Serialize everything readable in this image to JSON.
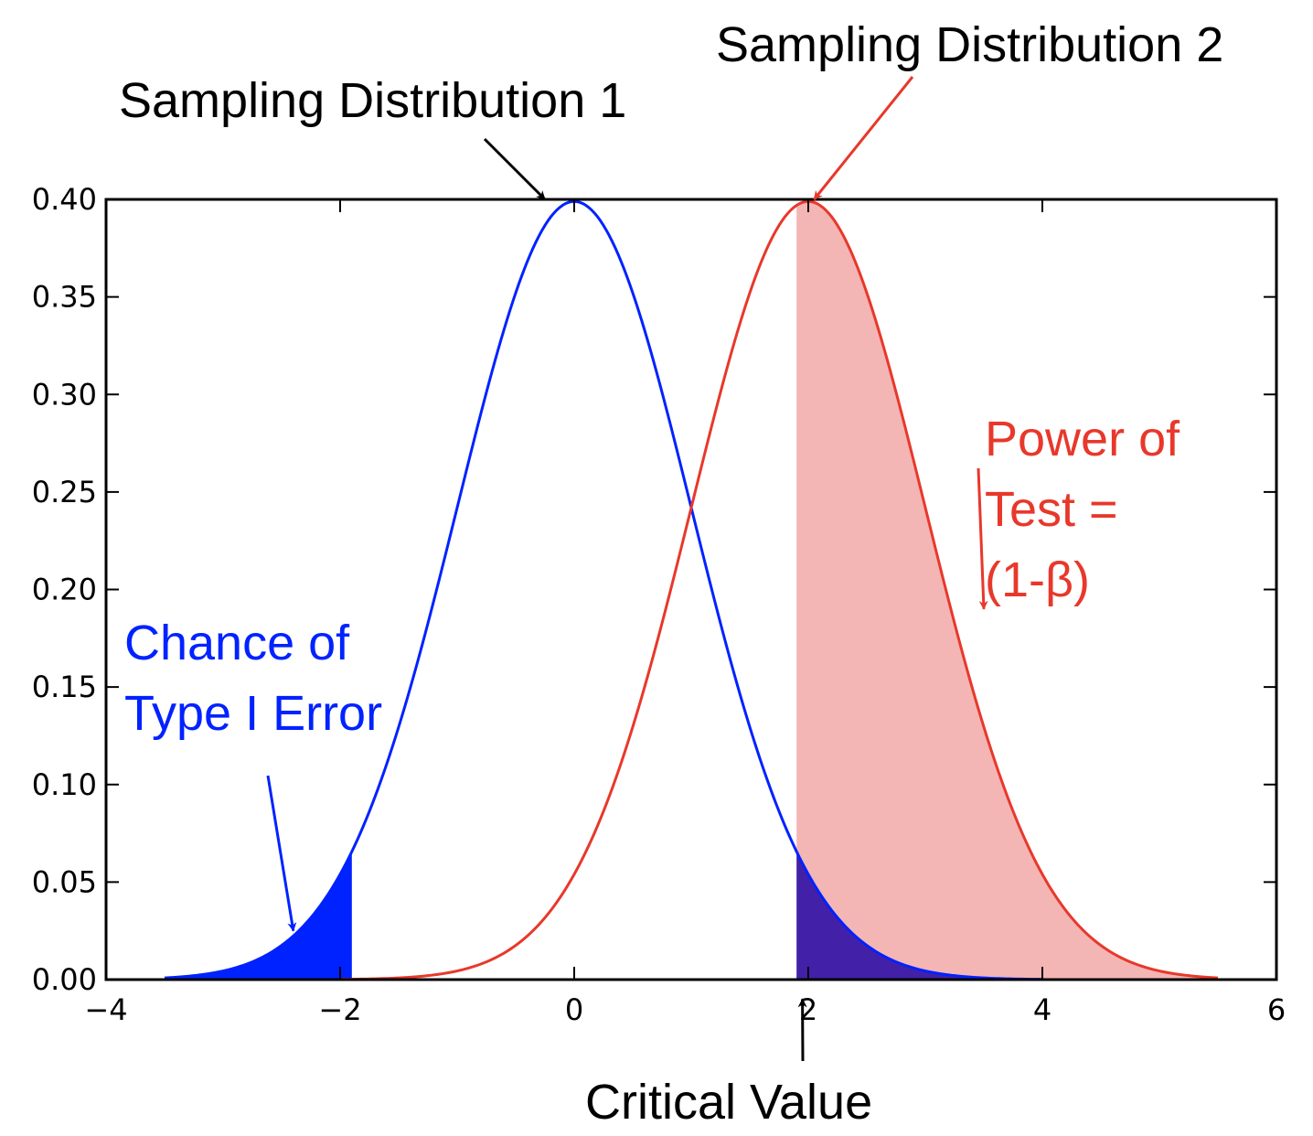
{
  "chart_data": {
    "type": "area",
    "title": "",
    "xlabel": "",
    "ylabel": "",
    "xlim": [
      -4,
      6
    ],
    "ylim": [
      0,
      0.4
    ],
    "x_ticks": [
      -4,
      -2,
      0,
      2,
      4,
      6
    ],
    "x_tick_labels": [
      "−4",
      "−2",
      "0",
      "2",
      "4",
      "6"
    ],
    "y_ticks": [
      0,
      0.05,
      0.1,
      0.15,
      0.2,
      0.25,
      0.3,
      0.35,
      0.4
    ],
    "y_tick_labels": [
      "0.00",
      "0.05",
      "0.10",
      "0.15",
      "0.20",
      "0.25",
      "0.30",
      "0.35",
      "0.40"
    ],
    "grid": false,
    "series": [
      {
        "mean": 0,
        "sd": 1,
        "x_range": [
          -3.5,
          4
        ],
        "color": "#0022ff"
      },
      {
        "mean": 2,
        "sd": 1,
        "x_range": [
          -2,
          5.5
        ],
        "color": "#e8382b"
      }
    ],
    "critical_value": 1.9,
    "shaded_regions": [
      {
        "series": 0,
        "from": -3.5,
        "to": -1.9,
        "color": "#0022ff"
      },
      {
        "series": 1,
        "from": 1.9,
        "to": 5.5,
        "color": "#f4b5b5"
      },
      {
        "series": 0,
        "from": 1.9,
        "to": 4,
        "color": "#4320a8"
      }
    ],
    "annotations": [
      {
        "text": "Sampling Distribution 1",
        "color": "#000000",
        "point_x": -0.25,
        "point_y": 0.4
      },
      {
        "text": "Sampling Distribution 2",
        "color": "#000000",
        "point_x": 2.05,
        "point_y": 0.4
      },
      {
        "lines": [
          "Power of",
          "Test =",
          "(1-β)"
        ],
        "color": "#e8382b",
        "point_x": 3.5,
        "point_y": 0.19
      },
      {
        "lines": [
          "Chance of",
          "Type I Error"
        ],
        "color": "#0022ff",
        "point_x": -2.4,
        "point_y": 0.025
      },
      {
        "text": "Critical Value",
        "color": "#000000",
        "point_x": 1.95,
        "point_y": -0.01
      }
    ]
  }
}
